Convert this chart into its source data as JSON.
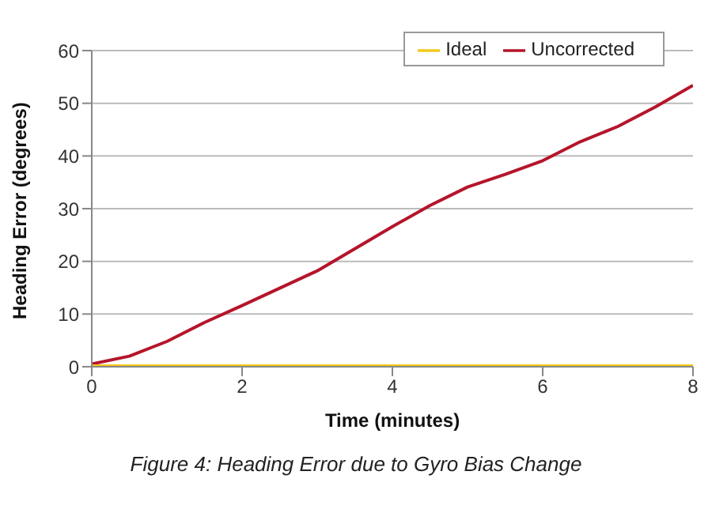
{
  "chart_data": {
    "type": "line",
    "xlabel": "Time (minutes)",
    "ylabel": "Heading Error (degrees)",
    "x": [
      0,
      0.5,
      1,
      1.5,
      2,
      2.5,
      3,
      3.5,
      4,
      4.5,
      5,
      5.5,
      6,
      6.5,
      7,
      7.5,
      8
    ],
    "series": [
      {
        "name": "Uncorrected",
        "color": "#b5152b",
        "values": [
          0.5,
          2,
          4.8,
          8.4,
          11.6,
          14.9,
          18.2,
          22.4,
          26.6,
          30.6,
          34.1,
          36.5,
          39.1,
          42.7,
          45.6,
          49.3,
          53.4
        ]
      },
      {
        "name": "Ideal",
        "color": "#f2c81c",
        "values": [
          0,
          0,
          0,
          0,
          0,
          0,
          0,
          0,
          0,
          0,
          0,
          0,
          0,
          0,
          0,
          0,
          0
        ]
      }
    ],
    "xlim": [
      0,
      8
    ],
    "xticks": [
      0,
      2,
      4,
      6,
      8
    ],
    "ylim": [
      0,
      60
    ],
    "yticks": [
      0,
      10,
      20,
      30,
      40,
      50,
      60
    ],
    "grid": "y",
    "legend": "top right",
    "marker": "none",
    "line_style": "solid",
    "annotations": [
      "Figure 4: Heading Error due to Gyro Bias Change"
    ]
  }
}
